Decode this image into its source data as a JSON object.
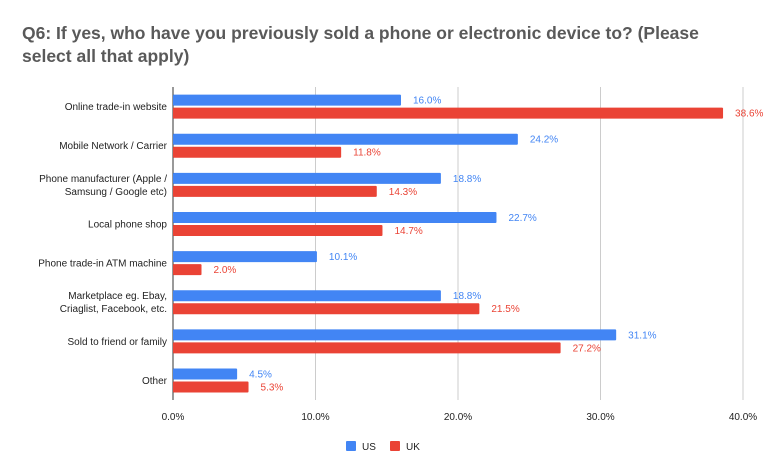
{
  "chart_data": {
    "type": "bar",
    "orientation": "horizontal",
    "title": "Q6: If yes, who have you previously sold a phone or electronic device to? (Please select all that apply)",
    "categories": [
      [
        "Online trade-in website"
      ],
      [
        "Mobile Network / Carrier"
      ],
      [
        "Phone manufacturer (Apple /",
        "Samsung / Google etc)"
      ],
      [
        "Local phone shop"
      ],
      [
        "Phone trade-in ATM machine"
      ],
      [
        "Marketplace eg. Ebay,",
        "Criaglist, Facebook, etc."
      ],
      [
        "Sold to friend or family"
      ],
      [
        "Other"
      ]
    ],
    "series": [
      {
        "name": "US",
        "color": "#4285f4",
        "values": [
          16.0,
          24.2,
          18.8,
          22.7,
          10.1,
          18.8,
          31.1,
          4.5
        ]
      },
      {
        "name": "UK",
        "color": "#ea4335",
        "values": [
          38.6,
          11.8,
          14.3,
          14.7,
          2.0,
          21.5,
          27.2,
          5.3
        ]
      }
    ],
    "xlim": [
      0,
      40
    ],
    "xticks": [
      "0.0%",
      "10.0%",
      "20.0%",
      "30.0%",
      "40.0%"
    ],
    "xtick_values": [
      0,
      10,
      20,
      30,
      40
    ],
    "grid": true,
    "legend": "bottom",
    "data_label_suffix": "%"
  }
}
